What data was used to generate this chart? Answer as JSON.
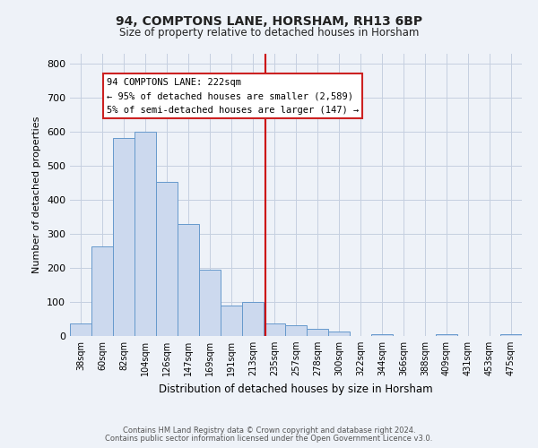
{
  "title": "94, COMPTONS LANE, HORSHAM, RH13 6BP",
  "subtitle": "Size of property relative to detached houses in Horsham",
  "xlabel": "Distribution of detached houses by size in Horsham",
  "ylabel": "Number of detached properties",
  "bar_labels": [
    "38sqm",
    "60sqm",
    "82sqm",
    "104sqm",
    "126sqm",
    "147sqm",
    "169sqm",
    "191sqm",
    "213sqm",
    "235sqm",
    "257sqm",
    "278sqm",
    "300sqm",
    "322sqm",
    "344sqm",
    "366sqm",
    "388sqm",
    "409sqm",
    "431sqm",
    "453sqm",
    "475sqm"
  ],
  "bar_heights": [
    38,
    263,
    582,
    600,
    452,
    330,
    195,
    90,
    100,
    38,
    32,
    20,
    12,
    0,
    5,
    0,
    0,
    5,
    0,
    0,
    5
  ],
  "bar_color": "#ccd9ee",
  "bar_edge_color": "#6699cc",
  "ylim": [
    0,
    830
  ],
  "yticks": [
    0,
    100,
    200,
    300,
    400,
    500,
    600,
    700,
    800
  ],
  "vline_x": 8.58,
  "vline_color": "#cc0000",
  "annotation_title": "94 COMPTONS LANE: 222sqm",
  "annotation_line1": "← 95% of detached houses are smaller (2,589)",
  "annotation_line2": "5% of semi-detached houses are larger (147) →",
  "footer_line1": "Contains HM Land Registry data © Crown copyright and database right 2024.",
  "footer_line2": "Contains public sector information licensed under the Open Government Licence v3.0.",
  "background_color": "#eef2f8",
  "plot_bg_color": "#eef2f8",
  "grid_color": "#c5cfe0"
}
